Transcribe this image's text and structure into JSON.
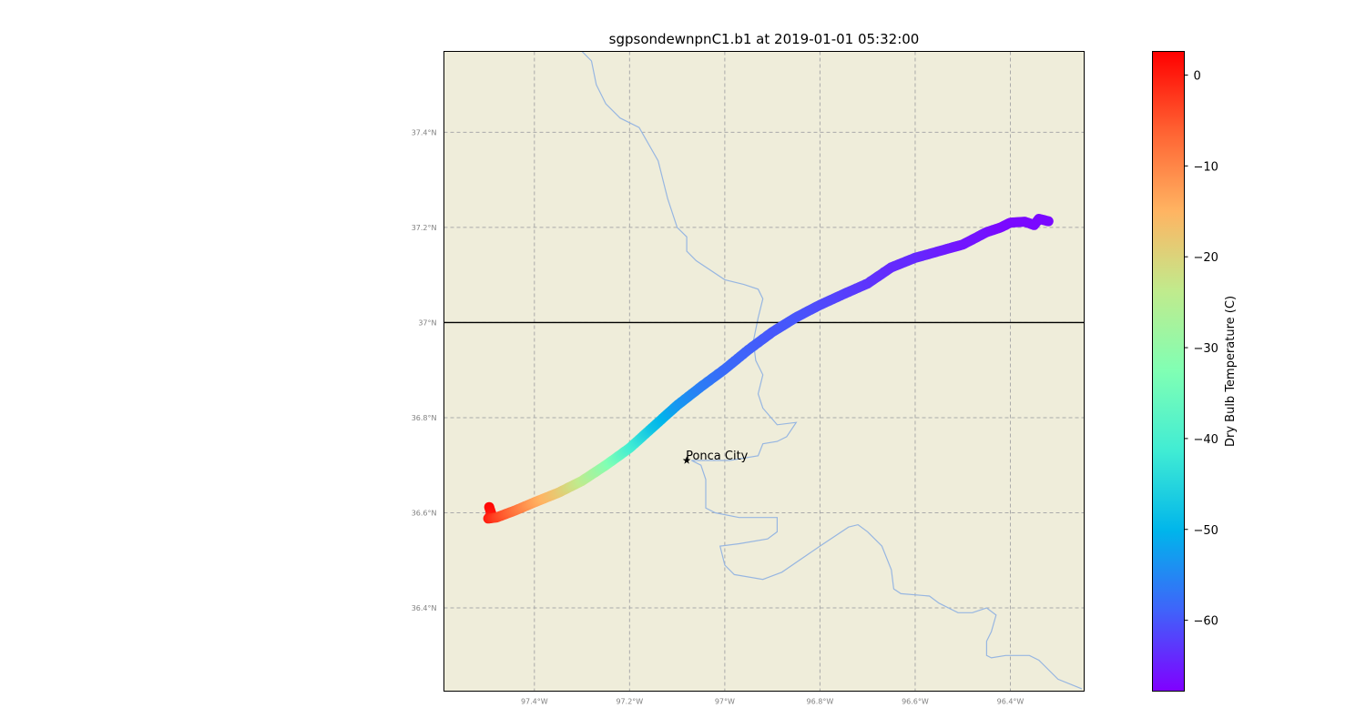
{
  "title": "sgpsondewnpnC1.b1 at 2019-01-01 05:32:00",
  "map": {
    "lon_range": [
      -97.59,
      -96.245
    ],
    "lat_range": [
      36.225,
      37.57
    ],
    "land_color": "#efedda",
    "river_color": "#97b6e1",
    "gridline_color": "#aaaaaa",
    "border_color": "#000000",
    "x_ticks": [
      "97.4°W",
      "97.2°W",
      "97°W",
      "96.8°W",
      "96.6°W",
      "96.4°W"
    ],
    "x_tick_values": [
      -97.4,
      -97.2,
      -97.0,
      -96.8,
      -96.6,
      -96.4
    ],
    "y_ticks": [
      "37.4°N",
      "37.2°N",
      "37°N",
      "36.8°N",
      "36.6°N",
      "36.4°N"
    ],
    "y_tick_values": [
      37.4,
      37.2,
      37.0,
      36.8,
      36.6,
      36.4
    ],
    "state_border_lat": 37.0,
    "city": {
      "name": "Ponca City",
      "lon": -97.08,
      "lat": 36.71
    },
    "river": [
      [
        -97.3,
        37.57
      ],
      [
        -97.28,
        37.55
      ],
      [
        -97.27,
        37.5
      ],
      [
        -97.25,
        37.46
      ],
      [
        -97.22,
        37.43
      ],
      [
        -97.18,
        37.41
      ],
      [
        -97.14,
        37.34
      ],
      [
        -97.12,
        37.26
      ],
      [
        -97.1,
        37.2
      ],
      [
        -97.08,
        37.18
      ],
      [
        -97.08,
        37.15
      ],
      [
        -97.06,
        37.13
      ],
      [
        -97.0,
        37.09
      ],
      [
        -96.96,
        37.08
      ],
      [
        -96.93,
        37.07
      ],
      [
        -96.92,
        37.05
      ],
      [
        -96.93,
        37.01
      ],
      [
        -96.94,
        36.96
      ],
      [
        -96.935,
        36.92
      ],
      [
        -96.92,
        36.89
      ],
      [
        -96.93,
        36.85
      ],
      [
        -96.92,
        36.82
      ],
      [
        -96.89,
        36.785
      ],
      [
        -96.85,
        36.79
      ],
      [
        -96.87,
        36.76
      ],
      [
        -96.89,
        36.75
      ],
      [
        -96.92,
        36.745
      ],
      [
        -96.93,
        36.72
      ],
      [
        -96.99,
        36.71
      ],
      [
        -97.05,
        36.71
      ],
      [
        -97.07,
        36.71
      ],
      [
        -97.05,
        36.7
      ],
      [
        -97.04,
        36.67
      ],
      [
        -97.04,
        36.61
      ],
      [
        -97.02,
        36.6
      ],
      [
        -96.97,
        36.59
      ],
      [
        -96.89,
        36.59
      ],
      [
        -96.89,
        36.56
      ],
      [
        -96.91,
        36.545
      ],
      [
        -96.97,
        36.535
      ],
      [
        -97.01,
        36.53
      ],
      [
        -97.0,
        36.49
      ],
      [
        -96.98,
        36.47
      ],
      [
        -96.92,
        36.46
      ],
      [
        -96.88,
        36.475
      ],
      [
        -96.8,
        36.53
      ],
      [
        -96.74,
        36.57
      ],
      [
        -96.72,
        36.575
      ],
      [
        -96.7,
        36.56
      ],
      [
        -96.67,
        36.53
      ],
      [
        -96.65,
        36.48
      ],
      [
        -96.645,
        36.44
      ],
      [
        -96.63,
        36.43
      ],
      [
        -96.57,
        36.425
      ],
      [
        -96.55,
        36.41
      ],
      [
        -96.51,
        36.39
      ],
      [
        -96.48,
        36.39
      ],
      [
        -96.45,
        36.4
      ],
      [
        -96.43,
        36.385
      ],
      [
        -96.44,
        36.35
      ],
      [
        -96.45,
        36.33
      ],
      [
        -96.45,
        36.3
      ],
      [
        -96.44,
        36.295
      ],
      [
        -96.41,
        36.3
      ],
      [
        -96.36,
        36.3
      ],
      [
        -96.34,
        36.29
      ],
      [
        -96.3,
        36.25
      ],
      [
        -96.25,
        36.23
      ]
    ]
  },
  "chart_data": {
    "type": "scatter",
    "title": "sgpsondewnpnC1.b1 at 2019-01-01 05:32:00",
    "xlabel": "",
    "ylabel": "",
    "colorbar_label": "Dry Bulb Temperature (C)",
    "colorbar_ticks": [
      "0",
      "−10",
      "−20",
      "−30",
      "−40",
      "−50",
      "−60"
    ],
    "colorbar_tick_values": [
      0,
      -10,
      -20,
      -30,
      -40,
      -50,
      -60
    ],
    "color_range": [
      -67.8,
      2.6
    ],
    "track": [
      {
        "lon": -97.495,
        "lat": 36.612,
        "temp": 2
      },
      {
        "lon": -97.49,
        "lat": 36.597,
        "temp": 1
      },
      {
        "lon": -97.497,
        "lat": 36.588,
        "temp": 0
      },
      {
        "lon": -97.48,
        "lat": 36.59,
        "temp": -3
      },
      {
        "lon": -97.44,
        "lat": 36.605,
        "temp": -8
      },
      {
        "lon": -97.4,
        "lat": 36.622,
        "temp": -13
      },
      {
        "lon": -97.35,
        "lat": 36.642,
        "temp": -18
      },
      {
        "lon": -97.3,
        "lat": 36.667,
        "temp": -24
      },
      {
        "lon": -97.25,
        "lat": 36.7,
        "temp": -31
      },
      {
        "lon": -97.2,
        "lat": 36.736,
        "temp": -40
      },
      {
        "lon": -97.15,
        "lat": 36.781,
        "temp": -48
      },
      {
        "lon": -97.1,
        "lat": 36.826,
        "temp": -53
      },
      {
        "lon": -97.05,
        "lat": 36.865,
        "temp": -56
      },
      {
        "lon": -97.0,
        "lat": 36.902,
        "temp": -58
      },
      {
        "lon": -96.95,
        "lat": 36.943,
        "temp": -59
      },
      {
        "lon": -96.9,
        "lat": 36.98,
        "temp": -60
      },
      {
        "lon": -96.85,
        "lat": 37.011,
        "temp": -60
      },
      {
        "lon": -96.8,
        "lat": 37.037,
        "temp": -61
      },
      {
        "lon": -96.75,
        "lat": 37.06,
        "temp": -62
      },
      {
        "lon": -96.7,
        "lat": 37.082,
        "temp": -63
      },
      {
        "lon": -96.65,
        "lat": 37.116,
        "temp": -64
      },
      {
        "lon": -96.6,
        "lat": 37.136,
        "temp": -64
      },
      {
        "lon": -96.55,
        "lat": 37.15,
        "temp": -65
      },
      {
        "lon": -96.5,
        "lat": 37.164,
        "temp": -66
      },
      {
        "lon": -96.45,
        "lat": 37.19,
        "temp": -66
      },
      {
        "lon": -96.42,
        "lat": 37.2,
        "temp": -67
      },
      {
        "lon": -96.4,
        "lat": 37.21,
        "temp": -67
      },
      {
        "lon": -96.37,
        "lat": 37.212,
        "temp": -67
      },
      {
        "lon": -96.35,
        "lat": 37.205,
        "temp": -67
      },
      {
        "lon": -96.34,
        "lat": 37.218,
        "temp": -67
      },
      {
        "lon": -96.32,
        "lat": 37.213,
        "temp": -67
      }
    ]
  }
}
